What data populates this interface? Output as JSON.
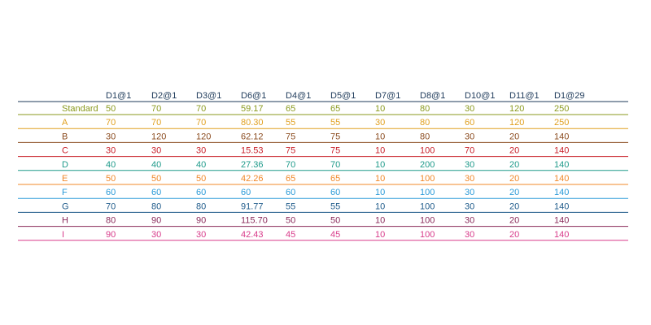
{
  "chart_data": {
    "type": "table",
    "columns": [
      "D1@1",
      "D2@1",
      "D3@1",
      "D6@1",
      "D4@1",
      "D5@1",
      "D7@1",
      "D8@1",
      "D10@1",
      "D11@1",
      "D1@29"
    ],
    "rows": [
      {
        "label": "Standard",
        "color": "#8a9a1e",
        "values": [
          "50",
          "70",
          "70",
          "59.17",
          "65",
          "65",
          "10",
          "80",
          "30",
          "120",
          "250"
        ]
      },
      {
        "label": "A",
        "color": "#e0a020",
        "values": [
          "70",
          "70",
          "70",
          "80.30",
          "55",
          "55",
          "30",
          "80",
          "60",
          "120",
          "250"
        ]
      },
      {
        "label": "B",
        "color": "#8a4a1e",
        "values": [
          "30",
          "120",
          "120",
          "62.12",
          "75",
          "75",
          "10",
          "80",
          "30",
          "20",
          "140"
        ]
      },
      {
        "label": "C",
        "color": "#c8202a",
        "values": [
          "30",
          "30",
          "30",
          "15.53",
          "75",
          "75",
          "10",
          "100",
          "70",
          "20",
          "140"
        ]
      },
      {
        "label": "D",
        "color": "#1e9a8a",
        "values": [
          "40",
          "40",
          "40",
          "27.36",
          "70",
          "70",
          "10",
          "200",
          "30",
          "20",
          "140"
        ]
      },
      {
        "label": "E",
        "color": "#f0882a",
        "values": [
          "50",
          "50",
          "50",
          "42.26",
          "65",
          "65",
          "10",
          "100",
          "30",
          "20",
          "140"
        ]
      },
      {
        "label": "F",
        "color": "#2a9ad8",
        "values": [
          "60",
          "60",
          "60",
          "60",
          "60",
          "60",
          "10",
          "100",
          "30",
          "20",
          "140"
        ]
      },
      {
        "label": "G",
        "color": "#1e5a8a",
        "values": [
          "70",
          "80",
          "80",
          "91.77",
          "55",
          "55",
          "10",
          "100",
          "30",
          "20",
          "140"
        ]
      },
      {
        "label": "H",
        "color": "#8a2a5a",
        "values": [
          "80",
          "90",
          "90",
          "115.70",
          "50",
          "50",
          "10",
          "100",
          "30",
          "20",
          "140"
        ]
      },
      {
        "label": "I",
        "color": "#d83a8a",
        "values": [
          "90",
          "30",
          "30",
          "42.43",
          "45",
          "45",
          "10",
          "100",
          "30",
          "20",
          "140"
        ]
      }
    ],
    "header_color": "#1e3a5a"
  }
}
